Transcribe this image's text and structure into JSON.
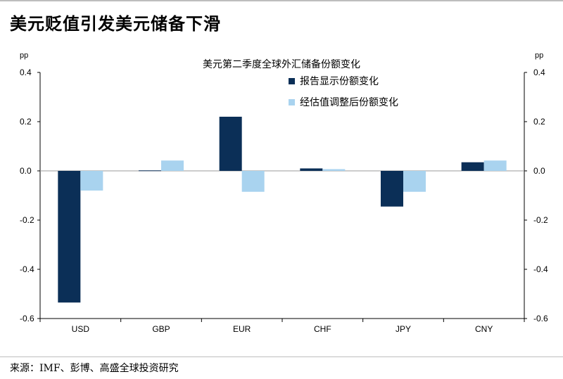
{
  "page": {
    "headline": "美元贬值引发美元储备下滑",
    "source": "来源：IMF、彭博、高盛全球投资研究"
  },
  "chart_data": {
    "type": "bar",
    "title": "美元第二季度全球外汇储备份额变化",
    "unit_left": "pp",
    "unit_right": "pp",
    "categories": [
      "USD",
      "GBP",
      "EUR",
      "CHF",
      "JPY",
      "CNY"
    ],
    "series": [
      {
        "name": "报告显示份额变化",
        "color": "#0b2f57",
        "values": [
          -0.535,
          0.002,
          0.22,
          0.01,
          -0.145,
          0.035
        ]
      },
      {
        "name": "经估值调整后份额变化",
        "color": "#a9d3ef",
        "values": [
          -0.08,
          0.042,
          -0.085,
          0.007,
          -0.085,
          0.042
        ]
      }
    ],
    "ylim": [
      -0.6,
      0.4
    ],
    "yticks": [
      "0.4",
      "0.2",
      "0.0",
      "-0.2",
      "-0.4",
      "-0.6"
    ],
    "ytick_values": [
      0.4,
      0.2,
      0.0,
      -0.2,
      -0.4,
      -0.6
    ],
    "grid": false,
    "legend": "top-right"
  }
}
